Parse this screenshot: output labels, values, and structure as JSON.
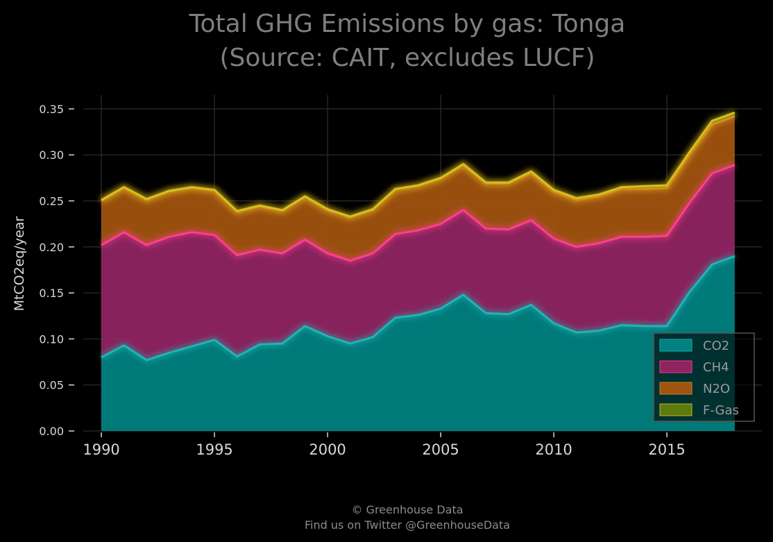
{
  "chart_data": {
    "type": "area",
    "stacked": true,
    "title": "Total GHG Emissions by gas: Tonga",
    "subtitle": "(Source: CAIT, excludes LUCF)",
    "ylabel": "MtCO2eq/year",
    "xlabel": "",
    "x": [
      1990,
      1991,
      1992,
      1993,
      1994,
      1995,
      1996,
      1997,
      1998,
      1999,
      2000,
      2001,
      2002,
      2003,
      2004,
      2005,
      2006,
      2007,
      2008,
      2009,
      2010,
      2011,
      2012,
      2013,
      2014,
      2015,
      2016,
      2017,
      2018
    ],
    "xlim": [
      1989.2,
      2019.2
    ],
    "ylim": [
      0,
      0.365
    ],
    "xticks": [
      "1990",
      "1995",
      "2000",
      "2005",
      "2010",
      "2015"
    ],
    "yticks": [
      "0.00",
      "0.05",
      "0.10",
      "0.15",
      "0.20",
      "0.25",
      "0.30",
      "0.35"
    ],
    "grid": true,
    "legend_position": "bottom-right",
    "series": [
      {
        "name": "CO2",
        "color": "#008080",
        "line_color": "#1fb5b5",
        "values": [
          0.08,
          0.093,
          0.077,
          0.085,
          0.092,
          0.099,
          0.081,
          0.094,
          0.095,
          0.114,
          0.103,
          0.095,
          0.102,
          0.123,
          0.126,
          0.133,
          0.148,
          0.128,
          0.127,
          0.137,
          0.117,
          0.107,
          0.109,
          0.115,
          0.114,
          0.114,
          0.151,
          0.181,
          0.19
        ]
      },
      {
        "name": "CH4",
        "color": "#8f2461",
        "line_color": "#ff3f8f",
        "values": [
          0.122,
          0.123,
          0.125,
          0.126,
          0.124,
          0.114,
          0.11,
          0.103,
          0.098,
          0.094,
          0.09,
          0.09,
          0.091,
          0.091,
          0.092,
          0.092,
          0.092,
          0.092,
          0.092,
          0.092,
          0.092,
          0.093,
          0.095,
          0.096,
          0.097,
          0.098,
          0.097,
          0.099,
          0.099
        ]
      },
      {
        "name": "N2O",
        "color": "#a0530f",
        "line_color": "#d98c1e",
        "values": [
          0.048,
          0.048,
          0.049,
          0.049,
          0.048,
          0.048,
          0.047,
          0.047,
          0.046,
          0.046,
          0.047,
          0.047,
          0.047,
          0.048,
          0.048,
          0.049,
          0.049,
          0.049,
          0.05,
          0.051,
          0.051,
          0.051,
          0.051,
          0.052,
          0.052,
          0.052,
          0.052,
          0.053,
          0.053
        ]
      },
      {
        "name": "F-Gas",
        "color": "#5c7a10",
        "line_color": "#d2c21a",
        "values": [
          0.001,
          0.001,
          0.001,
          0.001,
          0.001,
          0.001,
          0.001,
          0.001,
          0.001,
          0.001,
          0.001,
          0.001,
          0.001,
          0.001,
          0.001,
          0.001,
          0.001,
          0.001,
          0.001,
          0.002,
          0.002,
          0.002,
          0.002,
          0.002,
          0.003,
          0.003,
          0.003,
          0.004,
          0.004
        ]
      }
    ]
  },
  "footer": {
    "line1": "© Greenhouse Data",
    "line2": "Find us on Twitter @GreenhouseData"
  }
}
